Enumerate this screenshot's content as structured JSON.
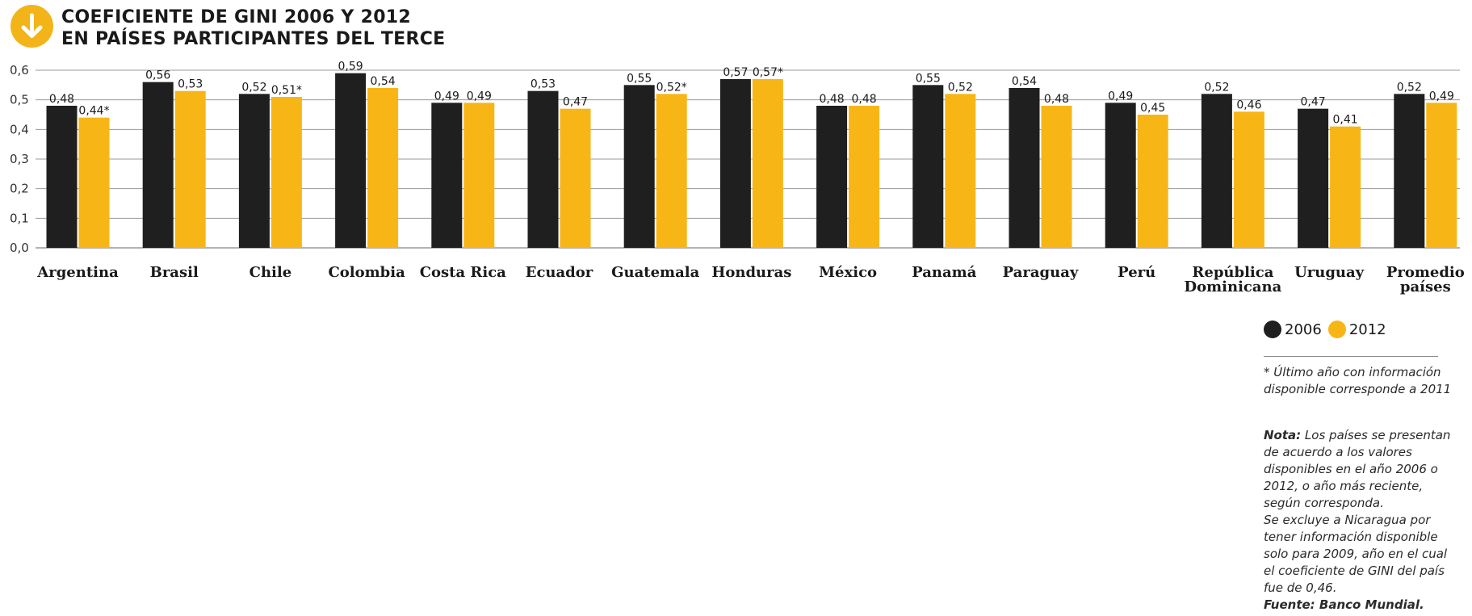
{
  "header": {
    "icon": "arrow-down-icon",
    "title_line1": "COEFICIENTE DE GINI 2006 Y 2012",
    "title_line2": "EN PAÍSES PARTICIPANTES DEL TERCE"
  },
  "colors": {
    "series_2006": "#1f1f1f",
    "series_2012": "#f8b616",
    "accent": "#f2b418",
    "grid": "#9a9a9a"
  },
  "chart_data": {
    "type": "bar",
    "categories": [
      "Argentina",
      "Brasil",
      "Chile",
      "Colombia",
      "Costa Rica",
      "Ecuador",
      "Guatemala",
      "Honduras",
      "México",
      "Panamá",
      "Paraguay",
      "Perú",
      "República Dominicana",
      "Uruguay",
      "Promedio países"
    ],
    "category_lines": [
      [
        "Argentina"
      ],
      [
        "Brasil"
      ],
      [
        "Chile"
      ],
      [
        "Colombia"
      ],
      [
        "Costa Rica"
      ],
      [
        "Ecuador"
      ],
      [
        "Guatemala"
      ],
      [
        "Honduras"
      ],
      [
        "México"
      ],
      [
        "Panamá"
      ],
      [
        "Paraguay"
      ],
      [
        "Perú"
      ],
      [
        "República",
        "Dominicana"
      ],
      [
        "Uruguay"
      ],
      [
        "Promedio",
        "países"
      ]
    ],
    "series": [
      {
        "name": "2006",
        "values": [
          0.48,
          0.56,
          0.52,
          0.59,
          0.49,
          0.53,
          0.55,
          0.57,
          0.48,
          0.55,
          0.54,
          0.49,
          0.52,
          0.47,
          0.52
        ],
        "labels": [
          "0,48",
          "0,56",
          "0,52",
          "0,59",
          "0,49",
          "0,53",
          "0,55",
          "0,57",
          "0,48",
          "0,55",
          "0,54",
          "0,49",
          "0,52",
          "0,47",
          "0,52"
        ]
      },
      {
        "name": "2012",
        "values": [
          0.44,
          0.53,
          0.51,
          0.54,
          0.49,
          0.47,
          0.52,
          0.57,
          0.48,
          0.52,
          0.48,
          0.45,
          0.46,
          0.41,
          0.49
        ],
        "labels": [
          "0,44*",
          "0,53",
          "0,51*",
          "0,54",
          "0,49",
          "0,47",
          "0,52*",
          "0,57*",
          "0,48",
          "0,52",
          "0,48",
          "0,45",
          "0,46",
          "0,41",
          "0,49"
        ]
      }
    ],
    "yticks": [
      0,
      0.1,
      0.2,
      0.3,
      0.4,
      0.5,
      0.6
    ],
    "ytick_labels": [
      "0,0",
      "0,1",
      "0,2",
      "0,3",
      "0,4",
      "0,5",
      "0,6"
    ],
    "ylim": [
      0,
      0.6
    ],
    "grid": true,
    "legend_position": "bottom-right"
  },
  "legend": {
    "item1": "2006",
    "item2": "2012"
  },
  "footnote": {
    "text": "* Último año con información disponible corresponde a 2011"
  },
  "nota": {
    "label": "Nota:",
    "text": " Los países se presentan de acuerdo a los valores disponibles en el año 2006 o 2012, o año más reciente, según corresponda.",
    "text2": "Se excluye a Nicaragua por tener información disponible solo para 2009, año en el cual el coeficiente de GINI del país fue de 0,46.",
    "source": "Fuente: Banco Mundial."
  }
}
